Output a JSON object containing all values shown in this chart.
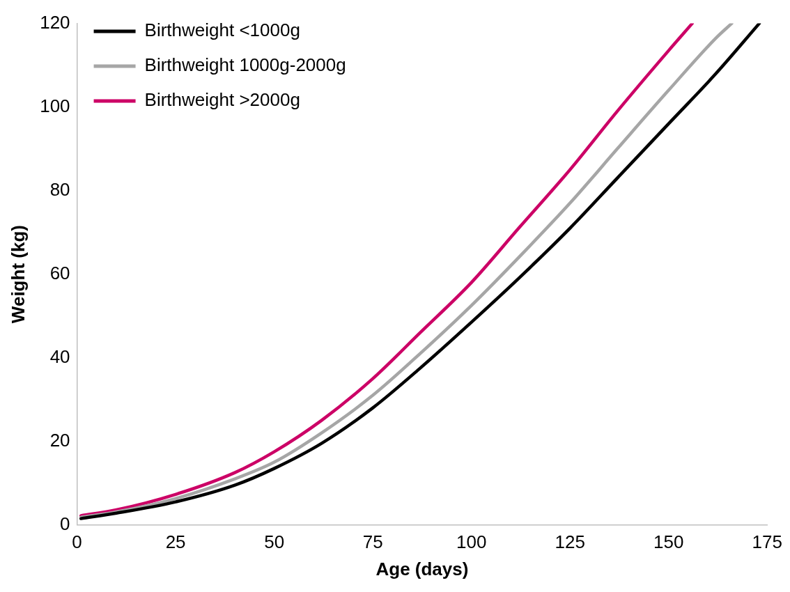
{
  "chart_data": {
    "type": "line",
    "xlabel": "Age (days)",
    "ylabel": "Weight (kg)",
    "xlim": [
      0,
      175
    ],
    "xticks": [
      0,
      25,
      50,
      75,
      100,
      125,
      150,
      175
    ],
    "ylim": [
      0,
      120
    ],
    "yticks": [
      0,
      20,
      40,
      60,
      80,
      100,
      120
    ],
    "grid": false,
    "legend": "top left",
    "marker": "none",
    "line_style": "solid",
    "series": [
      {
        "name": "Birthweight <1000g",
        "color": "#000000",
        "x": [
          1,
          10,
          25,
          40,
          50,
          62,
          75,
          87,
          100,
          112,
          125,
          137,
          150,
          162,
          173
        ],
        "values": [
          1.5,
          2.8,
          5.5,
          9.5,
          13.5,
          19.5,
          28,
          37.5,
          48.5,
          59,
          71,
          83,
          96,
          108,
          120
        ]
      },
      {
        "name": "Birthweight 1000g-2000g",
        "color": "#a6a6a6",
        "x": [
          1,
          10,
          25,
          40,
          50,
          62,
          75,
          87,
          100,
          112,
          125,
          137,
          150,
          162,
          166
        ],
        "values": [
          1.8,
          3.1,
          6.3,
          11,
          15,
          22,
          31,
          41,
          52.5,
          64,
          77,
          90,
          104,
          116.5,
          120
        ]
      },
      {
        "name": "Birthweight >2000g",
        "color": "#cc0066",
        "x": [
          1,
          10,
          25,
          40,
          50,
          62,
          75,
          87,
          100,
          112,
          125,
          137,
          150,
          156
        ],
        "values": [
          2.2,
          3.6,
          7.3,
          12.5,
          17.5,
          25,
          35,
          46,
          58,
          71,
          85,
          99,
          113.5,
          120
        ]
      }
    ]
  }
}
